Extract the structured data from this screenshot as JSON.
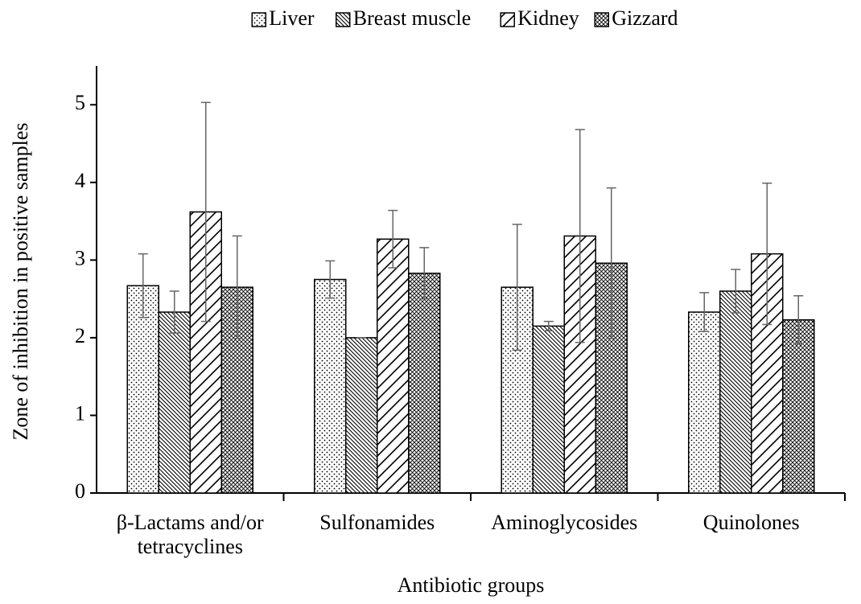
{
  "chart_data": {
    "type": "bar",
    "y_label": "Zone of inhibition in positive samples",
    "x_label": "Antibiotic groups",
    "categories": [
      "β-Lactams and/or\ntetracyclines",
      "Sulfonamides",
      "Aminoglycosides",
      "Quinolones"
    ],
    "series": [
      {
        "name": "Liver",
        "color": "#000000",
        "pattern": "dots",
        "values": [
          2.67,
          2.75,
          2.65,
          2.33
        ],
        "errors": [
          0.41,
          0.24,
          0.81,
          0.25
        ]
      },
      {
        "name": "Breast muscle",
        "color": "#000000",
        "pattern": "backslash",
        "values": [
          2.33,
          2.0,
          2.15,
          2.6
        ],
        "errors": [
          0.27,
          0,
          0.06,
          0.28
        ]
      },
      {
        "name": "Kidney",
        "color": "#000000",
        "pattern": "slash",
        "values": [
          3.62,
          3.27,
          3.31,
          3.08
        ],
        "errors": [
          1.41,
          0.37,
          1.37,
          0.91
        ]
      },
      {
        "name": "Gizzard",
        "color": "#000000",
        "pattern": "cross",
        "values": [
          2.65,
          2.83,
          2.96,
          2.23
        ],
        "errors": [
          0.66,
          0.33,
          0.97,
          0.31
        ]
      }
    ],
    "ylim": [
      0,
      5.5
    ],
    "yticks": [
      0,
      1,
      2,
      3,
      4,
      5
    ],
    "grid": false,
    "legend": "top"
  }
}
